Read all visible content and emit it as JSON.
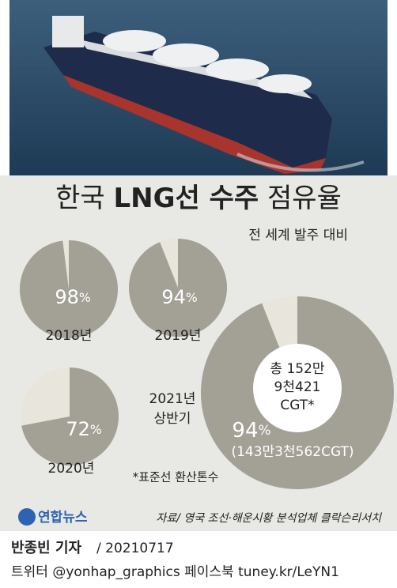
{
  "title": "한국 LNG선 수주 점유율",
  "title_bold": "LNG선 수주",
  "subtitle": "전 세계 발주 대비",
  "chart_data": [
    {
      "type": "pie",
      "label": [
        "2018년"
      ],
      "values": [
        98
      ],
      "value_labels": [
        "98%"
      ],
      "colors": [
        "#a3a196",
        "#e7e5dc"
      ]
    },
    {
      "type": "pie",
      "label": [
        "2019년"
      ],
      "values": [
        94
      ],
      "value_labels": [
        "94%"
      ],
      "colors": [
        "#a3a196",
        "#e7e5dc"
      ]
    },
    {
      "type": "pie",
      "label": [
        "2020년"
      ],
      "values": [
        72
      ],
      "value_labels": [
        "72%"
      ],
      "colors": [
        "#a3a196",
        "#e7e5dc"
      ]
    },
    {
      "type": "pie",
      "label": [
        "2021년",
        "상반기"
      ],
      "values": [
        94
      ],
      "value_labels": [
        "94%"
      ],
      "colors": [
        "#a3a196",
        "#e7e5dc"
      ],
      "center_label": [
        "총 152만",
        "9천421",
        "CGT*"
      ],
      "detail_label": "(143만3천562CGT)"
    }
  ],
  "footnote": "*표준선 환산톤수",
  "logo": "연합뉴스",
  "source": "자료/ 영국 조선·해운시황 분석업체 클락슨리서치",
  "reporter": "반종빈 기자",
  "date": "/ 20210717",
  "social": "트위터 @yonhap_graphics  페이스북 tuney.kr/LeYN1"
}
